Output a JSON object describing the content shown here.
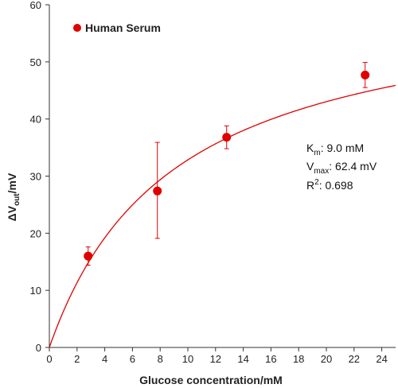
{
  "chart_data": {
    "type": "scatter",
    "title": "",
    "xlabel": "Glucose concentration/mM",
    "ylabel_prefix": "ΔV",
    "ylabel_sub": "out",
    "ylabel_suffix": "/mV",
    "xlim": [
      0,
      25
    ],
    "ylim": [
      0,
      60
    ],
    "xticks": [
      0,
      2,
      4,
      6,
      8,
      10,
      12,
      14,
      16,
      18,
      20,
      22,
      24
    ],
    "yticks": [
      0,
      10,
      20,
      30,
      40,
      50,
      60
    ],
    "grid": false,
    "legend_position": "top-left",
    "series": [
      {
        "name": "Human Serum",
        "color": "#e00000",
        "x": [
          2.8,
          7.8,
          12.8,
          22.8
        ],
        "y": [
          16.0,
          27.4,
          36.8,
          47.7
        ],
        "err_low": [
          1.6,
          8.3,
          2.0,
          2.2
        ],
        "err_high": [
          1.6,
          8.5,
          2.0,
          2.2
        ]
      }
    ],
    "fit": {
      "model": "michaelis-menten",
      "color": "#e00000",
      "Km": 9.0,
      "Vmax": 62.4
    },
    "annotations": {
      "km_prefix": "K",
      "km_sub": "m",
      "km_value": ": 9.0 mM",
      "vmax_prefix": "V",
      "vmax_sub": "max",
      "vmax_value": ": 62.4 mV",
      "r2_prefix": "R",
      "r2_sup": "2",
      "r2_value": ": 0.698"
    }
  }
}
